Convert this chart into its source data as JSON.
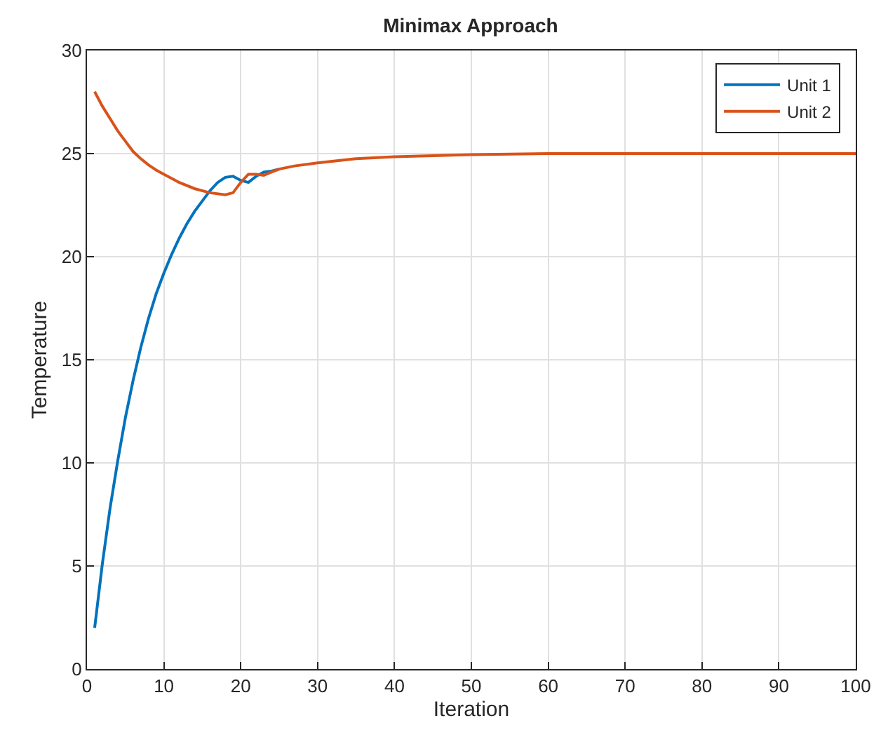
{
  "chart_data": {
    "type": "line",
    "title": "Minimax Approach",
    "xlabel": "Iteration",
    "ylabel": "Temperature",
    "xlim": [
      0,
      100
    ],
    "xticks": [
      0,
      10,
      20,
      30,
      40,
      50,
      60,
      70,
      80,
      90,
      100
    ],
    "ylim": [
      0,
      30
    ],
    "yticks": [
      0,
      5,
      10,
      15,
      20,
      25,
      30
    ],
    "grid": true,
    "legend": "top right",
    "marker": "none",
    "line_style": "solid",
    "series": [
      {
        "name": "Unit 1",
        "color": "#0072bd",
        "x": [
          1,
          2,
          3,
          4,
          5,
          6,
          7,
          8,
          9,
          10,
          11,
          12,
          13,
          14,
          15,
          16,
          17,
          18,
          19,
          20,
          21,
          22,
          23,
          24,
          25
        ],
        "values": [
          2,
          5.1,
          7.8,
          10.1,
          12.2,
          14.0,
          15.6,
          17.0,
          18.2,
          19.2,
          20.1,
          20.9,
          21.6,
          22.2,
          22.7,
          23.2,
          23.6,
          23.85,
          23.9,
          23.7,
          23.6,
          23.9,
          24.1,
          24.15,
          24.25
        ]
      },
      {
        "name": "Unit 2",
        "color": "#d95319",
        "x": [
          1,
          2,
          3,
          4,
          5,
          6,
          7,
          8,
          9,
          10,
          12,
          14,
          16,
          18,
          19,
          20,
          21,
          22,
          23,
          24,
          25,
          27,
          30,
          35,
          40,
          50,
          60,
          100
        ],
        "values": [
          28,
          27.3,
          26.7,
          26.1,
          25.6,
          25.1,
          24.75,
          24.45,
          24.2,
          24.0,
          23.6,
          23.3,
          23.1,
          23.0,
          23.1,
          23.6,
          24.0,
          24.0,
          23.95,
          24.1,
          24.25,
          24.4,
          24.55,
          24.75,
          24.85,
          24.95,
          25,
          25
        ]
      }
    ]
  }
}
